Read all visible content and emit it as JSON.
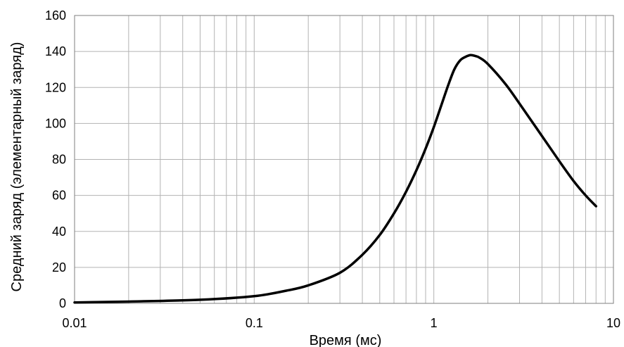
{
  "chart_data": {
    "type": "line",
    "title": "",
    "xlabel": "Время (мс)",
    "ylabel": "Средний заряд (элементарный заряд)",
    "x_scale": "log",
    "xlim": [
      0.01,
      10
    ],
    "ylim": [
      0,
      160
    ],
    "x_ticks": [
      "0.01",
      "0.1",
      "1",
      "10"
    ],
    "y_ticks": [
      "0",
      "20",
      "40",
      "60",
      "80",
      "100",
      "120",
      "140",
      "160"
    ],
    "grid": true,
    "legend": "none",
    "series": [
      {
        "color": "#000000",
        "x": [
          0.01,
          0.02,
          0.05,
          0.1,
          0.15,
          0.2,
          0.3,
          0.4,
          0.5,
          0.6,
          0.7,
          0.8,
          0.9,
          1.0,
          1.1,
          1.2,
          1.3,
          1.4,
          1.5,
          1.6,
          1.7,
          1.8,
          2.0,
          2.5,
          3.0,
          4.0,
          5.0,
          6.0,
          7.0,
          8.0
        ],
        "y": [
          0.5,
          1,
          2,
          4,
          7,
          10,
          17,
          27,
          38,
          50,
          62,
          74,
          86,
          98,
          110,
          121,
          130,
          135,
          137,
          138,
          137.5,
          136.5,
          133,
          122,
          111,
          93,
          79,
          68,
          60,
          54
        ]
      }
    ]
  }
}
